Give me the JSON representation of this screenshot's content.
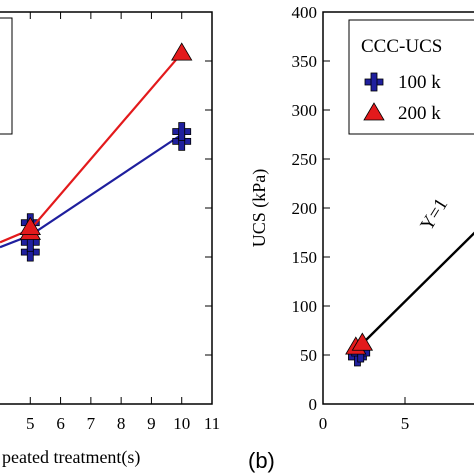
{
  "chart_data": [
    {
      "panel": "left",
      "type": "scatter",
      "xlabel": "peated treatment(s)",
      "ylabel": "",
      "xlim": [
        4,
        11
      ],
      "ylim": [
        0,
        400
      ],
      "x_ticks": [
        5,
        6,
        7,
        8,
        9,
        10,
        11
      ],
      "series": [
        {
          "name": "",
          "marker": "plus",
          "color": "#1f1f9e",
          "points": [
            [
              5,
              155
            ],
            [
              5,
              165
            ],
            [
              5,
              185
            ],
            [
              10,
              268
            ],
            [
              10,
              278
            ]
          ],
          "trend": [
            [
              4,
              160
            ],
            [
              5,
              172
            ],
            [
              10,
              275
            ]
          ]
        },
        {
          "name": "",
          "marker": "triangle",
          "color": "#e31a1c",
          "points": [
            [
              5,
              175
            ],
            [
              5,
              180
            ],
            [
              10,
              358
            ]
          ],
          "trend": [
            [
              4,
              165
            ],
            [
              5,
              178
            ],
            [
              10,
              358
            ]
          ]
        }
      ]
    },
    {
      "panel": "right",
      "type": "scatter",
      "label": "(b)",
      "xlabel": "",
      "ylabel": "UCS (kPa)",
      "xlim": [
        0,
        15
      ],
      "ylim": [
        0,
        400
      ],
      "x_ticks": [
        0,
        5
      ],
      "y_ticks": [
        0,
        50,
        100,
        150,
        200,
        250,
        300,
        350,
        400
      ],
      "legend": {
        "title": "CCC-UCS",
        "entries": [
          "100 k",
          "200 k"
        ]
      },
      "annotation": "Y=1",
      "series": [
        {
          "name": "100 k",
          "marker": "plus",
          "color": "#1f1f9e",
          "points": [
            [
              2.1,
              48
            ],
            [
              2.3,
              52
            ]
          ]
        },
        {
          "name": "200 k",
          "marker": "triangle",
          "color": "#e31a1c",
          "points": [
            [
              2.0,
              58
            ],
            [
              2.4,
              62
            ]
          ]
        }
      ],
      "fit_line": [
        [
          2.0,
          55
        ],
        [
          15,
          270
        ]
      ]
    }
  ]
}
